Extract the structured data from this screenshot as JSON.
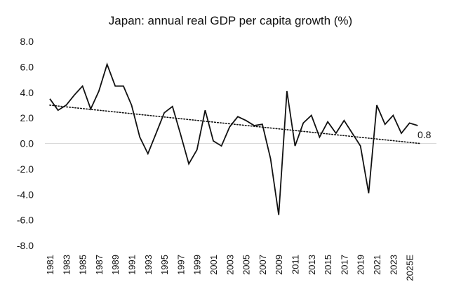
{
  "chart_data": {
    "type": "line",
    "title": "Japan: annual real GDP per capita growth (%)",
    "xlabel": "",
    "ylabel": "",
    "ylim": [
      -8.0,
      8.0
    ],
    "y_ticks": [
      "8.0",
      "6.0",
      "4.0",
      "2.0",
      "0.0",
      "-2.0",
      "-4.0",
      "-6.0",
      "-8.0"
    ],
    "y_tick_values": [
      8,
      6,
      4,
      2,
      0,
      -2,
      -4,
      -6,
      -8
    ],
    "x_tick_labels": [
      "1981",
      "1983",
      "1985",
      "1987",
      "1989",
      "1991",
      "1993",
      "1995",
      "1997",
      "1999",
      "2001",
      "2003",
      "2005",
      "2007",
      "2009",
      "2011",
      "2013",
      "2015",
      "2017",
      "2019",
      "2021",
      "2023",
      "2025E"
    ],
    "categories": [
      "1981",
      "1982",
      "1983",
      "1984",
      "1985",
      "1986",
      "1987",
      "1988",
      "1989",
      "1990",
      "1991",
      "1992",
      "1993",
      "1994",
      "1995",
      "1996",
      "1997",
      "1998",
      "1999",
      "2000",
      "2001",
      "2002",
      "2003",
      "2004",
      "2005",
      "2006",
      "2007",
      "2008",
      "2009",
      "2010",
      "2011",
      "2012",
      "2013",
      "2014",
      "2015",
      "2016",
      "2017",
      "2018",
      "2019",
      "2020",
      "2021",
      "2022",
      "2023",
      "2024",
      "2025E",
      "2026E"
    ],
    "series": [
      {
        "name": "Real GDP per capita growth",
        "values": [
          3.5,
          2.6,
          3.0,
          3.8,
          4.5,
          2.7,
          4.1,
          6.2,
          4.5,
          4.5,
          3.0,
          0.5,
          -0.8,
          0.8,
          2.4,
          2.9,
          0.7,
          -1.6,
          -0.5,
          2.6,
          0.2,
          -0.2,
          1.3,
          2.1,
          1.8,
          1.4,
          1.5,
          -1.2,
          -5.6,
          4.1,
          -0.2,
          1.6,
          2.2,
          0.5,
          1.7,
          0.8,
          1.8,
          0.8,
          -0.2,
          -3.9,
          3.0,
          1.5,
          2.2,
          0.8,
          1.6,
          1.4
        ]
      }
    ],
    "trendline": {
      "name": "Linear trend",
      "start": 3.0,
      "end": 0.0,
      "style": "dotted"
    },
    "annotation": {
      "text": "0.8"
    },
    "grid": false,
    "zero_line": true,
    "legend": "none"
  }
}
